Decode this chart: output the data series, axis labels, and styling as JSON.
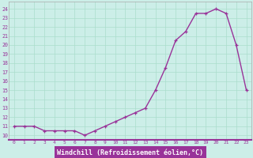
{
  "x": [
    0,
    1,
    2,
    3,
    4,
    5,
    6,
    7,
    8,
    9,
    10,
    11,
    12,
    13,
    14,
    15,
    16,
    17,
    18,
    19,
    20,
    21,
    22,
    23
  ],
  "y": [
    11,
    11,
    11,
    10.5,
    10.5,
    10.5,
    10.5,
    10,
    10.5,
    11,
    11.5,
    12,
    12.5,
    13,
    15,
    17.5,
    20.5,
    21.5,
    23.5,
    23.5,
    24,
    23.5,
    20,
    15
  ],
  "line_color": "#993399",
  "bg_color": "#cceee8",
  "grid_color": "#aaddcc",
  "xlabel": "Windchill (Refroidissement éolien,°C)",
  "xlim": [
    -0.5,
    23.5
  ],
  "ylim": [
    9.5,
    24.8
  ],
  "yticks": [
    10,
    11,
    12,
    13,
    14,
    15,
    16,
    17,
    18,
    19,
    20,
    21,
    22,
    23,
    24
  ],
  "xtick_labels": [
    "0",
    "1",
    "2",
    "3",
    "4",
    "5",
    "6",
    "7",
    "8",
    "9",
    "10",
    "11",
    "12",
    "13",
    "14",
    "15",
    "16",
    "17",
    "18",
    "19",
    "20",
    "21",
    "22",
    "23"
  ],
  "xlabel_bg": "#993399",
  "xlabel_color": "white",
  "axis_color": "#993399"
}
